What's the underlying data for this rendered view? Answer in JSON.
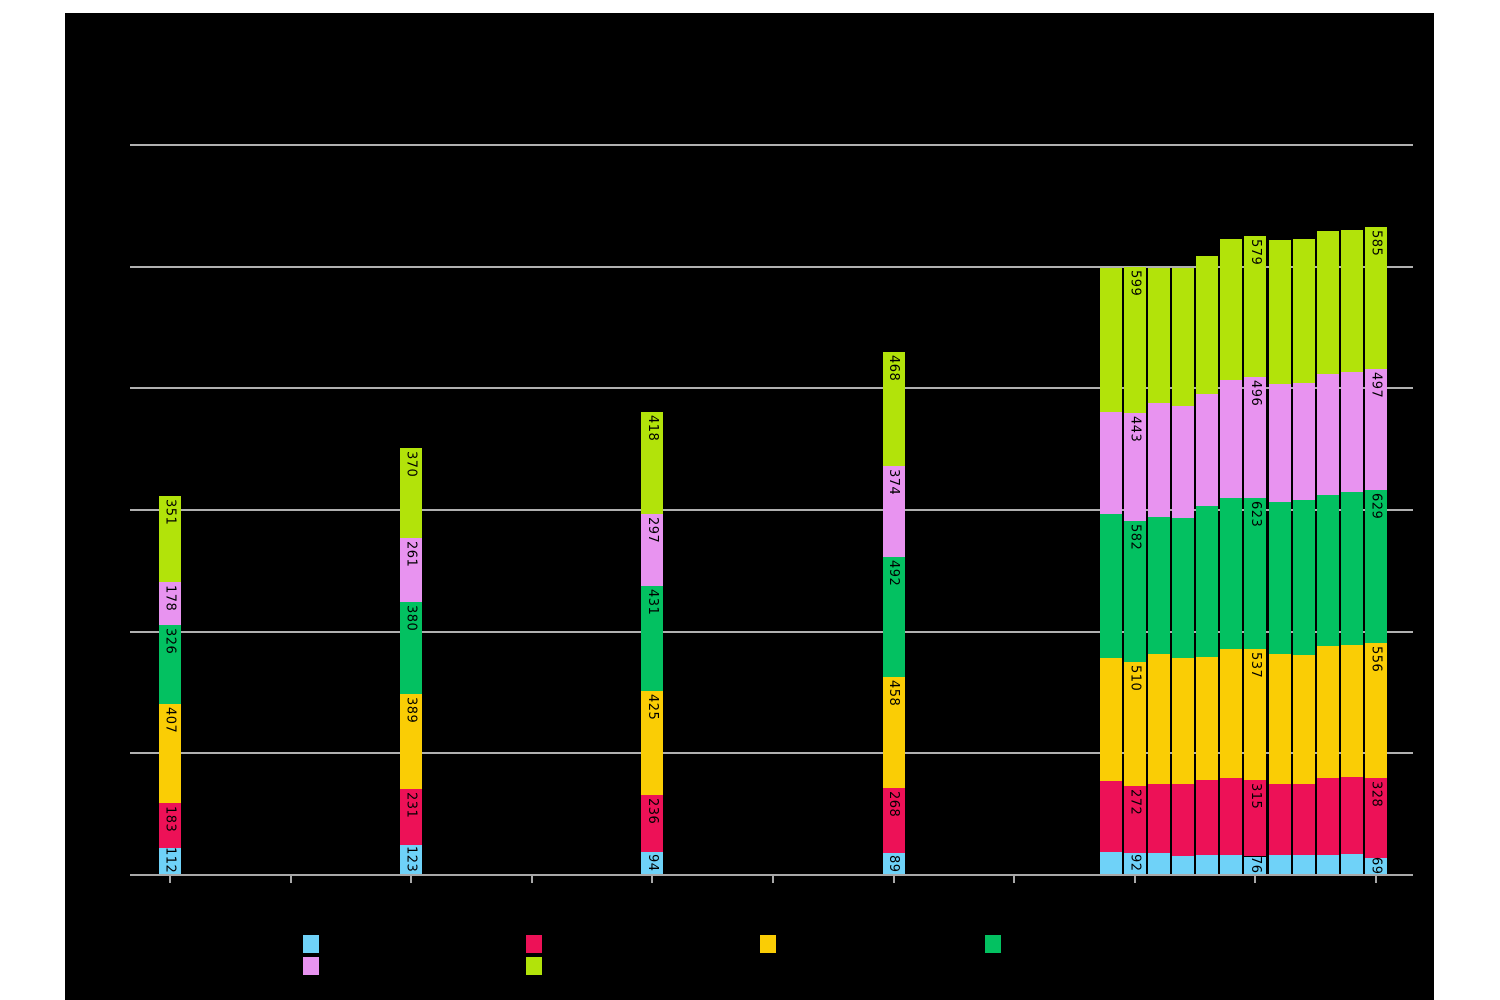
{
  "figure": {
    "page_background": "#ffffff",
    "background": "#000000",
    "grid_color": "#b0b0b0",
    "axis_color": "#a8a8a8",
    "tick_color": "#a8a8a8",
    "bar_label_color": "#000000"
  },
  "chart_data": {
    "type": "bar",
    "stacked": true,
    "grid": true,
    "ylim": [
      0,
      3000
    ],
    "gridline_values": [
      500,
      1000,
      1500,
      2000,
      2500,
      3000
    ],
    "x_tick_positions": [
      0,
      1,
      2,
      3,
      4,
      5,
      6,
      7,
      8,
      9,
      10
    ],
    "series_order": [
      "skyblue",
      "crimson",
      "gold",
      "green",
      "violet",
      "yellowgreen"
    ],
    "series_colors": {
      "skyblue": "#6FD2F8",
      "crimson": "#ED1157",
      "gold": "#FACD05",
      "green": "#03C161",
      "violet": "#E893F0",
      "yellowgreen": "#B2E30A"
    },
    "bars": [
      {
        "x": 0.0,
        "labeled": true,
        "values": [
          112,
          183,
          407,
          326,
          178,
          351
        ]
      },
      {
        "x": 2.0,
        "labeled": true,
        "values": [
          123,
          231,
          389,
          380,
          261,
          370
        ]
      },
      {
        "x": 4.0,
        "labeled": true,
        "values": [
          94,
          236,
          425,
          431,
          297,
          418
        ]
      },
      {
        "x": 6.0,
        "labeled": true,
        "values": [
          89,
          268,
          458,
          492,
          374,
          468
        ]
      },
      {
        "x": 7.8,
        "labeled": false,
        "values": [
          96,
          290,
          507,
          590,
          420,
          592
        ]
      },
      {
        "x": 8.0,
        "labeled": true,
        "values": [
          92,
          272,
          510,
          582,
          443,
          599
        ]
      },
      {
        "x": 8.2,
        "labeled": false,
        "values": [
          92,
          281,
          534,
          565,
          466,
          557
        ]
      },
      {
        "x": 8.4,
        "labeled": false,
        "values": [
          78,
          295,
          518,
          575,
          463,
          567
        ]
      },
      {
        "x": 8.6,
        "labeled": false,
        "values": [
          82,
          308,
          505,
          623,
          459,
          568
        ]
      },
      {
        "x": 8.8,
        "labeled": false,
        "values": [
          82,
          315,
          531,
          622,
          486,
          576
        ]
      },
      {
        "x": 9.0,
        "labeled": true,
        "values": [
          76,
          315,
          537,
          623,
          496,
          579
        ]
      },
      {
        "x": 9.2,
        "labeled": false,
        "values": [
          82,
          290,
          538,
          623,
          486,
          589
        ]
      },
      {
        "x": 9.4,
        "labeled": false,
        "values": [
          82,
          290,
          534,
          634,
          483,
          589
        ]
      },
      {
        "x": 9.6,
        "labeled": false,
        "values": [
          82,
          315,
          543,
          623,
          494,
          589
        ]
      },
      {
        "x": 9.8,
        "labeled": false,
        "values": [
          86,
          318,
          541,
          630,
          493,
          582
        ]
      },
      {
        "x": 10.0,
        "labeled": true,
        "values": [
          69,
          328,
          556,
          629,
          497,
          585
        ]
      }
    ],
    "legend": {
      "row1_series": [
        "skyblue",
        "crimson",
        "gold",
        "green"
      ],
      "row2_series": [
        "violet",
        "yellowgreen"
      ]
    }
  }
}
